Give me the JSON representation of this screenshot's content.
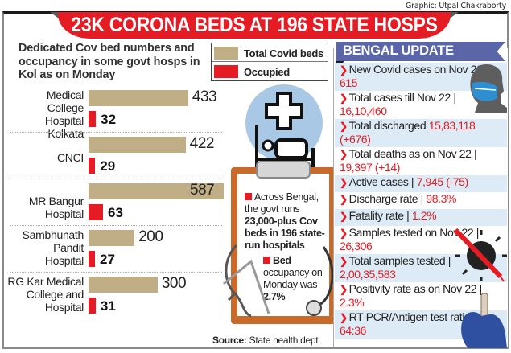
{
  "credit": "Graphic: Utpal Chakraborty",
  "title": "23K CORONA BEDS AT 196 STATE HOSPS",
  "subtitle": "Dedicated Cov bed numbers and occupancy in some govt hosps in Kol as on Monday",
  "colors": {
    "total": "#bfae86",
    "occupied": "#e51c23",
    "ribbon": "#5a66a8",
    "accent": "#e51c23"
  },
  "chart_data": {
    "type": "bar",
    "orientation": "horizontal",
    "title": "Dedicated Cov bed numbers and occupancy in some govt hosps in Kol as on Monday",
    "xlabel": "",
    "ylabel": "",
    "xlim": [
      0,
      600
    ],
    "grid": false,
    "legend_position": "top-right",
    "legend": [
      "Total Covid beds",
      "Occupied"
    ],
    "categories": [
      "Medical College Hospital Kolkata",
      "CNCI",
      "MR Bangur Hospital",
      "Sambhunath Pandit Hospital",
      "RG Kar Medical College and Hospital"
    ],
    "category_lines": [
      [
        "Medical",
        "College Hospital",
        "Kolkata"
      ],
      [
        "CNCI"
      ],
      [
        "MR Bangur",
        "Hospital"
      ],
      [
        "Sambhunath",
        "Pandit",
        "Hospital"
      ],
      [
        "RG Kar Medical",
        "College and",
        "Hospital"
      ]
    ],
    "series": [
      {
        "name": "Total Covid beds",
        "values": [
          433,
          422,
          587,
          200,
          300
        ]
      },
      {
        "name": "Occupied",
        "values": [
          32,
          29,
          63,
          27,
          31
        ]
      }
    ]
  },
  "note": {
    "line1_prefix": "Across Bengal, the govt runs",
    "line1_bold": "23,000-plus Cov beds in 196 state-run hospitals",
    "line2_bold": "Bed",
    "line2_text": "occupancy on Monday was",
    "line2_value": "2.7%"
  },
  "source_label": "Source:",
  "source_text": "State health dept",
  "bengal_update": {
    "heading": "BENGAL UPDATE",
    "items": [
      {
        "label": "New Covid cases on Nov 22 |",
        "value": "615"
      },
      {
        "label": "Total cases till Nov 22 |",
        "value": "16,10,460"
      },
      {
        "label": "Total discharged",
        "value": "15,83,118 (+676)"
      },
      {
        "label": "Total deaths as on Nov 22 |",
        "value": "19,397 (+14)"
      },
      {
        "label": "Active cases |",
        "value": "7,945 (-75)"
      },
      {
        "label": "Discharge rate |",
        "value": "98.3%"
      },
      {
        "label": "Fatality rate |",
        "value": "1.2%"
      },
      {
        "label": "Samples tested on Nov 22 |",
        "value": "26,306"
      },
      {
        "label": "Total samples tested |",
        "value": "2,00,35,583"
      },
      {
        "label": "Positivity rate as on Nov 22 |",
        "value": "2.3%"
      },
      {
        "label": "RT-PCR/Antigen test ratio |",
        "value": "64:36"
      }
    ]
  }
}
